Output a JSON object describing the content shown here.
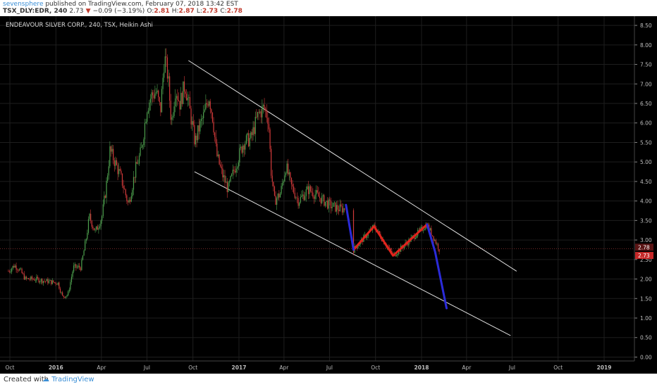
{
  "header": {
    "publisher": "sevensphere",
    "published_text": " published on TradingView.com, February 07, 2018 13:42 EST",
    "symbol": "TSX_DLY:EDR, 240",
    "price": "2.73",
    "arrow": "▼",
    "change": "−0.09 (−3.19%)",
    "ohlc": {
      "o_label": "O:",
      "o": "2.81",
      "h_label": "H:",
      "h": "2.87",
      "l_label": "L:",
      "l": "2.73",
      "c_label": "C:",
      "c": "2.78"
    }
  },
  "footer": {
    "created_with": "Created with",
    "brand": "TradingView"
  },
  "colors": {
    "background": "#000000",
    "grid": "#1e1e1e",
    "up": "#4ea04e",
    "down": "#d23a3a",
    "channel": "#e0e0e0",
    "red_path": "#e0241c",
    "blue_path": "#2b2bd9",
    "price_line": "#b43c3c"
  },
  "chart_data": {
    "type": "candlestick",
    "title": "ENDEAVOUR SILVER CORP., 240, TSX, Heikin Ashi",
    "x_ticks": [
      "Oct",
      "2016",
      "Apr",
      "Jul",
      "Oct",
      "2017",
      "Apr",
      "Jul",
      "Oct",
      "2018",
      "Apr",
      "Jul",
      "Oct",
      "2019"
    ],
    "y_ticks": [
      "0.00",
      "0.50",
      "1.00",
      "1.50",
      "2.00",
      "2.50",
      "3.00",
      "3.50",
      "4.00",
      "4.50",
      "5.00",
      "5.50",
      "6.00",
      "6.50",
      "7.00",
      "7.50",
      "8.00",
      "8.50"
    ],
    "ylim": [
      -0.1,
      8.7
    ],
    "price_labels": [
      {
        "value": 2.78,
        "text": "2.78",
        "style": "dark-red"
      },
      {
        "value": 2.73,
        "text": "2.73",
        "style": "red"
      }
    ],
    "price_path": [
      [
        "2015-09-28",
        2.2
      ],
      [
        "2015-10-10",
        2.35
      ],
      [
        "2015-10-20",
        2.25
      ],
      [
        "2015-11-01",
        2.0
      ],
      [
        "2015-11-20",
        2.0
      ],
      [
        "2015-12-10",
        1.95
      ],
      [
        "2016-01-05",
        1.9
      ],
      [
        "2016-01-14",
        1.55
      ],
      [
        "2016-01-25",
        1.6
      ],
      [
        "2016-02-05",
        2.3
      ],
      [
        "2016-02-20",
        2.3
      ],
      [
        "2016-03-01",
        3.0
      ],
      [
        "2016-03-08",
        3.6
      ],
      [
        "2016-03-20",
        3.2
      ],
      [
        "2016-04-02",
        3.6
      ],
      [
        "2016-04-10",
        4.3
      ],
      [
        "2016-04-18",
        5.3
      ],
      [
        "2016-04-28",
        5.0
      ],
      [
        "2016-05-10",
        4.6
      ],
      [
        "2016-05-25",
        3.9
      ],
      [
        "2016-06-08",
        4.8
      ],
      [
        "2016-06-20",
        5.3
      ],
      [
        "2016-07-01",
        6.4
      ],
      [
        "2016-07-10",
        6.7
      ],
      [
        "2016-07-20",
        6.8
      ],
      [
        "2016-07-28",
        6.3
      ],
      [
        "2016-08-05",
        7.7
      ],
      [
        "2016-08-12",
        7.2
      ],
      [
        "2016-08-19",
        6.0
      ],
      [
        "2016-08-27",
        6.9
      ],
      [
        "2016-09-05",
        6.5
      ],
      [
        "2016-09-15",
        7.0
      ],
      [
        "2016-09-25",
        6.3
      ],
      [
        "2016-10-05",
        5.5
      ],
      [
        "2016-10-14",
        5.9
      ],
      [
        "2016-10-23",
        6.2
      ],
      [
        "2016-11-02",
        6.7
      ],
      [
        "2016-11-10",
        6.1
      ],
      [
        "2016-11-17",
        5.2
      ],
      [
        "2016-11-28",
        4.7
      ],
      [
        "2016-12-10",
        4.3
      ],
      [
        "2016-12-25",
        4.9
      ],
      [
        "2017-01-10",
        5.5
      ],
      [
        "2017-01-25",
        5.6
      ],
      [
        "2017-02-08",
        6.2
      ],
      [
        "2017-02-20",
        6.4
      ],
      [
        "2017-03-01",
        6.1
      ],
      [
        "2017-03-06",
        4.8
      ],
      [
        "2017-03-13",
        4.0
      ],
      [
        "2017-03-25",
        4.2
      ],
      [
        "2017-04-05",
        4.9
      ],
      [
        "2017-04-15",
        4.4
      ],
      [
        "2017-04-30",
        4.0
      ],
      [
        "2017-05-20",
        4.3
      ],
      [
        "2017-06-10",
        4.1
      ],
      [
        "2017-06-30",
        3.9
      ],
      [
        "2017-07-20",
        3.8
      ],
      [
        "2017-07-31",
        3.8
      ]
    ],
    "annotations": {
      "channel_upper": [
        [
          "2016-09-22",
          7.6
        ],
        [
          "2018-07-10",
          2.2
        ]
      ],
      "channel_lower": [
        [
          "2016-10-04",
          4.75
        ],
        [
          "2018-06-28",
          0.55
        ]
      ],
      "red_path": [
        [
          "2017-08-18",
          2.75
        ],
        [
          "2017-09-28",
          3.35
        ],
        [
          "2017-11-05",
          2.6
        ],
        [
          "2018-01-12",
          3.4
        ]
      ],
      "blue_path_1": [
        [
          "2017-08-03",
          3.9
        ],
        [
          "2017-08-18",
          2.75
        ]
      ],
      "blue_path_2": [
        [
          "2018-01-12",
          3.4
        ],
        [
          "2018-01-28",
          2.7
        ],
        [
          "2018-02-20",
          1.25
        ]
      ]
    }
  }
}
